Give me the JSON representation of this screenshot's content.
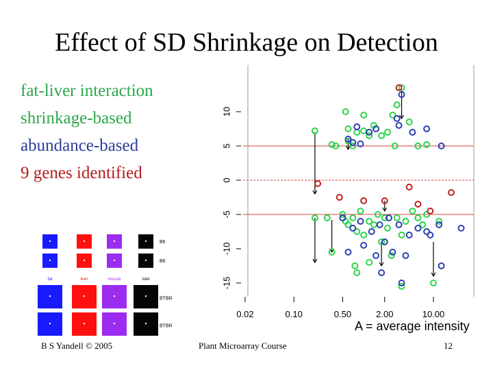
{
  "slide": {
    "title": "Effect of SD Shrinkage on Detection",
    "legend": {
      "line1": "fat-liver interaction",
      "line2": "shrinkage-based",
      "line3": "abundance-based",
      "line4": "9 genes identified"
    },
    "footer": {
      "left": "B S Yandell © 2005",
      "middle": "Plant Microarray Course",
      "page": "12"
    },
    "colors": {
      "green": "#2bd44a",
      "blue": "#2a3fb0",
      "red": "#c02020",
      "refline": "#d04040"
    }
  },
  "grid": {
    "columns": [
      "fat",
      "liver",
      "muscle",
      "islet"
    ],
    "row_labels": [
      "B6",
      "B6",
      "BTBR",
      "BTBR"
    ],
    "colors": [
      "#1a1aff",
      "#ff1010",
      "#9b2cf0",
      "#050505"
    ]
  },
  "chart_data": {
    "type": "scatter",
    "xlabel": "A = average intensity",
    "x_scale": "log",
    "x_ticks": [
      "0.02",
      "0.10",
      "0.50",
      "2.00",
      "10.00"
    ],
    "y_ticks": [
      "10",
      "5",
      "0",
      "-5",
      "-10",
      "-15"
    ],
    "ylim": [
      -17,
      15
    ],
    "hlines": [
      5,
      0,
      -5
    ],
    "series": [
      {
        "color": "green",
        "points": [
          [
            0.2,
            7.2
          ],
          [
            0.35,
            5.2
          ],
          [
            0.4,
            5.0
          ],
          [
            0.55,
            10.0
          ],
          [
            0.6,
            7.5
          ],
          [
            0.6,
            5.7
          ],
          [
            0.7,
            5.0
          ],
          [
            0.8,
            7.0
          ],
          [
            1.0,
            9.5
          ],
          [
            1.0,
            7.2
          ],
          [
            1.2,
            6.5
          ],
          [
            1.4,
            8.0
          ],
          [
            1.8,
            6.5
          ],
          [
            2.2,
            7.0
          ],
          [
            2.6,
            9.5
          ],
          [
            3.0,
            11.0
          ],
          [
            3.5,
            13.5
          ],
          [
            2.8,
            5.0
          ],
          [
            4.5,
            8.5
          ],
          [
            6.0,
            5.0
          ],
          [
            8.0,
            5.2
          ],
          [
            0.2,
            -5.5
          ],
          [
            0.3,
            -5.5
          ],
          [
            0.35,
            -10.5
          ],
          [
            0.5,
            -5.0
          ],
          [
            0.55,
            -6.0
          ],
          [
            0.6,
            -6.5
          ],
          [
            0.7,
            -5.5
          ],
          [
            0.8,
            -7.5
          ],
          [
            0.9,
            -4.5
          ],
          [
            1.0,
            -8.0
          ],
          [
            1.2,
            -6.0
          ],
          [
            1.4,
            -6.5
          ],
          [
            1.6,
            -5.0
          ],
          [
            1.8,
            -9.0
          ],
          [
            2.0,
            -5.5
          ],
          [
            2.2,
            -7.0
          ],
          [
            2.5,
            -11.0
          ],
          [
            3.0,
            -5.5
          ],
          [
            3.5,
            -8.0
          ],
          [
            4.0,
            -6.0
          ],
          [
            5.0,
            -4.5
          ],
          [
            6.0,
            -5.5
          ],
          [
            7.0,
            -6.5
          ],
          [
            8.0,
            -5.0
          ],
          [
            0.75,
            -12.5
          ],
          [
            1.2,
            -12.0
          ],
          [
            0.8,
            -13.5
          ],
          [
            3.5,
            -15.5
          ],
          [
            10.0,
            -15.0
          ],
          [
            12.0,
            -6.0
          ]
        ]
      },
      {
        "color": "blue",
        "points": [
          [
            0.6,
            6.0
          ],
          [
            0.7,
            5.5
          ],
          [
            0.8,
            7.8
          ],
          [
            0.9,
            5.3
          ],
          [
            1.2,
            7.0
          ],
          [
            1.5,
            7.5
          ],
          [
            3.0,
            9.0
          ],
          [
            3.2,
            8.0
          ],
          [
            3.5,
            12.5
          ],
          [
            5.0,
            7.0
          ],
          [
            8.0,
            7.5
          ],
          [
            13.0,
            5.0
          ],
          [
            0.5,
            -5.5
          ],
          [
            0.7,
            -7.0
          ],
          [
            0.9,
            -6.0
          ],
          [
            1.0,
            -9.5
          ],
          [
            1.3,
            -7.5
          ],
          [
            1.5,
            -11.0
          ],
          [
            1.7,
            -6.5
          ],
          [
            2.0,
            -9.0
          ],
          [
            2.3,
            -5.5
          ],
          [
            2.6,
            -10.5
          ],
          [
            3.2,
            -6.5
          ],
          [
            4.0,
            -11.0
          ],
          [
            4.5,
            -8.0
          ],
          [
            6.0,
            -7.0
          ],
          [
            8.0,
            -7.5
          ],
          [
            9.0,
            -8.0
          ],
          [
            12.0,
            -6.5
          ],
          [
            0.6,
            -10.5
          ],
          [
            1.8,
            -13.5
          ],
          [
            3.5,
            -15.0
          ],
          [
            13.0,
            -12.5
          ],
          [
            25.0,
            -7.0
          ]
        ]
      },
      {
        "color": "red",
        "points": [
          [
            0.22,
            -0.5
          ],
          [
            4.5,
            -1.0
          ],
          [
            18.0,
            -1.8
          ],
          [
            2.0,
            -3.0
          ],
          [
            6.0,
            -3.5
          ],
          [
            9.0,
            -4.5
          ],
          [
            3.2,
            13.5
          ],
          [
            0.45,
            -2.5
          ],
          [
            1.0,
            -3.0
          ]
        ]
      }
    ]
  }
}
